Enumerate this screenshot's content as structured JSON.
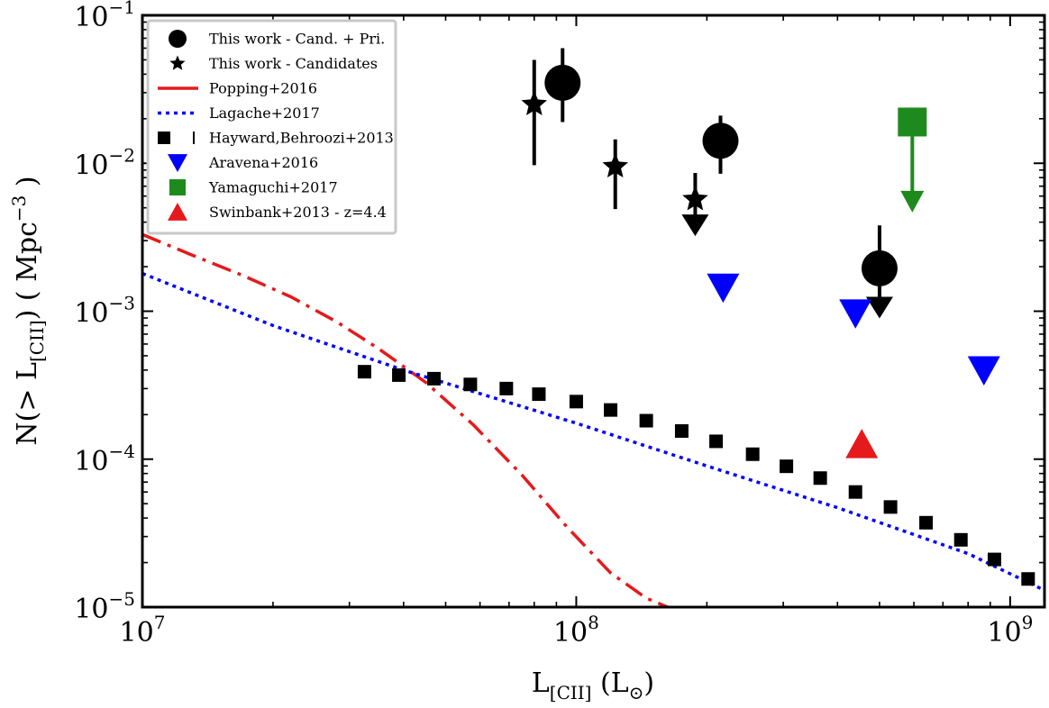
{
  "chart_data": {
    "type": "scatter",
    "title": "",
    "xlabel": {
      "base": "L",
      "sub": "[CII]",
      "rest": " (L",
      "unit_sub": "⊙",
      "close": ")"
    },
    "ylabel": {
      "prefix": "N(> L",
      "sub": "[CII]",
      "mid": ") ( Mpc",
      "sup": "−3",
      "close": " )"
    },
    "x_scale": "log",
    "y_scale": "log",
    "xlim": [
      10000000,
      1200000000
    ],
    "ylim": [
      1e-05,
      0.1
    ],
    "x_ticks": [
      {
        "value": 10000000,
        "base": "10",
        "exp": "7"
      },
      {
        "value": 100000000,
        "base": "10",
        "exp": "8"
      },
      {
        "value": 1000000000,
        "base": "10",
        "exp": "9"
      }
    ],
    "y_ticks": [
      {
        "value": 0.1,
        "base": "10",
        "exp": "−1"
      },
      {
        "value": 0.01,
        "base": "10",
        "exp": "−2"
      },
      {
        "value": 0.001,
        "base": "10",
        "exp": "−3"
      },
      {
        "value": 0.0001,
        "base": "10",
        "exp": "−4"
      },
      {
        "value": 1e-05,
        "base": "10",
        "exp": "−5"
      }
    ],
    "legend_position": "top-left",
    "grid": false,
    "colors": {
      "black": "#000000",
      "red": "#e41a1c",
      "blue": "#0000ff",
      "green": "#1e8a1e"
    },
    "series": [
      {
        "name": "This work - Cand. + Pri.",
        "kind": "points",
        "marker": "circle",
        "color": "#000000",
        "points": [
          {
            "x": 93000000,
            "y": 0.035,
            "y_lo": 0.019,
            "y_hi": 0.06
          },
          {
            "x": 215000000,
            "y": 0.0142,
            "y_lo": 0.0085,
            "y_hi": 0.021
          },
          {
            "x": 500000000,
            "y": 0.00195,
            "y_lo": 0.001,
            "y_hi": 0.0038,
            "upper_limit": true
          }
        ]
      },
      {
        "name": "This work - Candidates",
        "kind": "points",
        "marker": "star",
        "color": "#000000",
        "points": [
          {
            "x": 80000000,
            "y": 0.025,
            "y_lo": 0.0097,
            "y_hi": 0.05
          },
          {
            "x": 123000000,
            "y": 0.0095,
            "y_lo": 0.0049,
            "y_hi": 0.0145
          },
          {
            "x": 188000000,
            "y": 0.0057,
            "y_lo": 0.0036,
            "y_hi": 0.0086,
            "upper_limit": true
          }
        ]
      },
      {
        "name": "Popping+2016",
        "kind": "line",
        "style": "dashdot",
        "color": "#e41a1c",
        "x": [
          10000000,
          13000000,
          17000000,
          22000000,
          28000000,
          35000000,
          45000000,
          58000000,
          75000000,
          95000000,
          120000000,
          145000000,
          165000000
        ],
        "y": [
          0.0033,
          0.0024,
          0.00175,
          0.00125,
          0.00085,
          0.00056,
          0.00033,
          0.00017,
          7.8e-05,
          3.5e-05,
          1.7e-05,
          1.15e-05,
          9.8e-06
        ]
      },
      {
        "name": "Lagache+2017",
        "kind": "line",
        "style": "dotted",
        "color": "#0000ff",
        "x": [
          10000000,
          20000000,
          40000000,
          100000000,
          200000000,
          400000000,
          800000000,
          1200000000
        ],
        "y": [
          0.0018,
          0.0008,
          0.0004,
          0.000175,
          9e-05,
          4.7e-05,
          2.3e-05,
          1.3e-05
        ]
      },
      {
        "name": "Hayward,Behroozi+2013",
        "kind": "points",
        "marker": "square",
        "color": "#000000",
        "points": [
          {
            "x": 32500000,
            "y": 0.00039
          },
          {
            "x": 39000000,
            "y": 0.00037
          },
          {
            "x": 47000000,
            "y": 0.00035
          },
          {
            "x": 57000000,
            "y": 0.00032
          },
          {
            "x": 69000000,
            "y": 0.0003
          },
          {
            "x": 82000000,
            "y": 0.000275
          },
          {
            "x": 100000000,
            "y": 0.000245
          },
          {
            "x": 120000000,
            "y": 0.000215
          },
          {
            "x": 145000000,
            "y": 0.000182
          },
          {
            "x": 175000000,
            "y": 0.000155
          },
          {
            "x": 210000000,
            "y": 0.000132
          },
          {
            "x": 255000000,
            "y": 0.000108
          },
          {
            "x": 305000000,
            "y": 8.95e-05
          },
          {
            "x": 365000000,
            "y": 7.45e-05
          },
          {
            "x": 440000000,
            "y": 6e-05
          },
          {
            "x": 530000000,
            "y": 4.75e-05
          },
          {
            "x": 640000000,
            "y": 3.72e-05
          },
          {
            "x": 770000000,
            "y": 2.85e-05
          },
          {
            "x": 920000000,
            "y": 2.1e-05
          },
          {
            "x": 1100000000,
            "y": 1.55e-05
          }
        ]
      },
      {
        "name": "Aravena+2016",
        "kind": "points",
        "marker": "triangle-down",
        "color": "#0000ff",
        "points": [
          {
            "x": 218000000,
            "y": 0.00145
          },
          {
            "x": 440000000,
            "y": 0.00097
          },
          {
            "x": 870000000,
            "y": 0.0004
          }
        ]
      },
      {
        "name": "Yamaguchi+2017",
        "kind": "points",
        "marker": "square",
        "color": "#1e8a1e",
        "points": [
          {
            "x": 595000000,
            "y": 0.019,
            "y_lo": 0.0052,
            "y_hi": 0.019,
            "upper_limit": true
          }
        ]
      },
      {
        "name": "Swinbank+2013 - z=4.4",
        "kind": "points",
        "marker": "triangle-up",
        "color": "#e41a1c",
        "points": [
          {
            "x": 455000000,
            "y": 0.000126
          }
        ]
      }
    ]
  }
}
